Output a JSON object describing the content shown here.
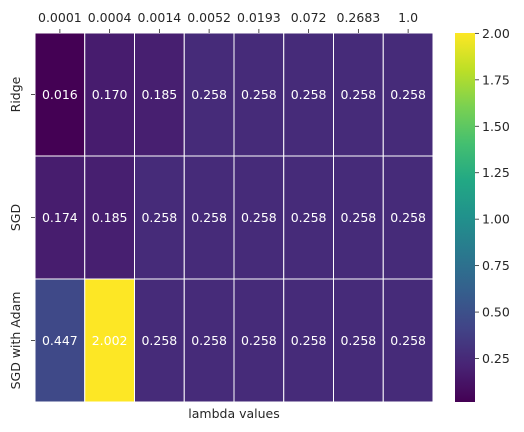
{
  "chart_data": {
    "type": "heatmap",
    "title": "",
    "xlabel": "lambda values",
    "ylabel": "",
    "x_tick_position": "top",
    "columns": [
      "0.0001",
      "0.0004",
      "0.0014",
      "0.0052",
      "0.0193",
      "0.072",
      "0.2683",
      "1.0"
    ],
    "rows": [
      "Ridge",
      "SGD",
      "SGD with Adam"
    ],
    "values": [
      [
        0.016,
        0.17,
        0.185,
        0.258,
        0.258,
        0.258,
        0.258,
        0.258
      ],
      [
        0.174,
        0.185,
        0.258,
        0.258,
        0.258,
        0.258,
        0.258,
        0.258
      ],
      [
        0.447,
        2.002,
        0.258,
        0.258,
        0.258,
        0.258,
        0.258,
        0.258
      ]
    ],
    "cell_labels": [
      [
        "0.016",
        "0.170",
        "0.185",
        "0.258",
        "0.258",
        "0.258",
        "0.258",
        "0.258"
      ],
      [
        "0.174",
        "0.185",
        "0.258",
        "0.258",
        "0.258",
        "0.258",
        "0.258",
        "0.258"
      ],
      [
        "0.447",
        "2.002",
        "0.258",
        "0.258",
        "0.258",
        "0.258",
        "0.258",
        "0.258"
      ]
    ],
    "colormap": "viridis",
    "color_range": [
      0.016,
      2.002
    ],
    "colorbar_ticks": [
      "0.25",
      "0.50",
      "0.75",
      "1.00",
      "1.25",
      "1.50",
      "1.75",
      "2.00"
    ],
    "colorbar_tick_values": [
      0.25,
      0.5,
      0.75,
      1.0,
      1.25,
      1.5,
      1.75,
      2.0
    ],
    "grid": true
  }
}
